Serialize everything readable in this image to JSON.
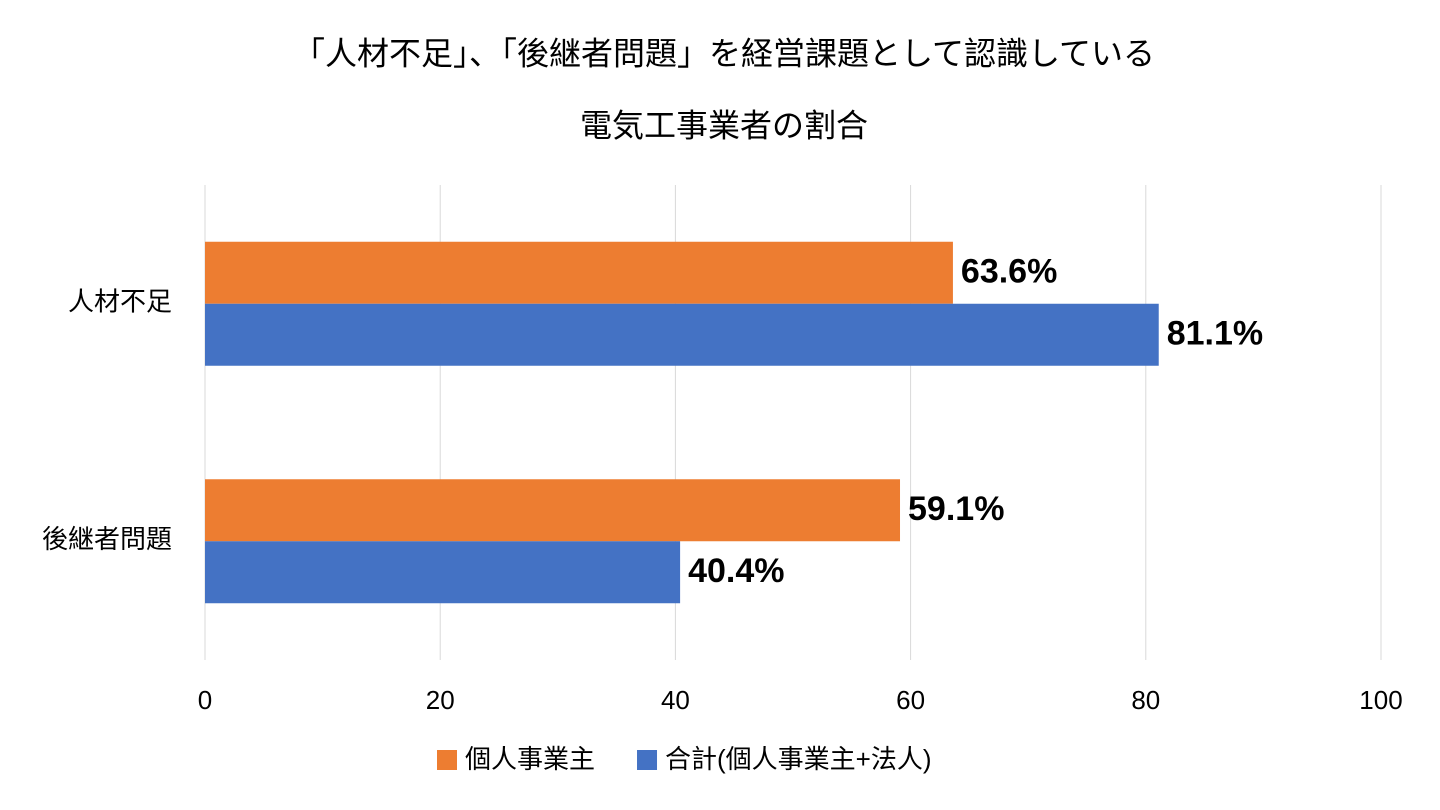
{
  "chart_data": {
    "type": "bar",
    "orientation": "horizontal",
    "title": [
      "「人材不足」、「後継者問題」を経営課題として認識している",
      "電気工事業者の割合"
    ],
    "categories": [
      "人材不足",
      "後継者問題"
    ],
    "series": [
      {
        "name": "個人事業主",
        "color": "#ED7D31",
        "values": [
          63.6,
          59.1
        ],
        "value_labels": [
          "63.6%",
          "59.1%"
        ]
      },
      {
        "name": "合計(個人事業主+法人)",
        "color": "#4472C4",
        "values": [
          81.1,
          40.4
        ],
        "value_labels": [
          "81.1%",
          "40.4%"
        ]
      }
    ],
    "xlim": [
      0,
      100
    ],
    "xticks": [
      0,
      20,
      40,
      60,
      80,
      100
    ],
    "grid": true,
    "legend": "bottom"
  }
}
